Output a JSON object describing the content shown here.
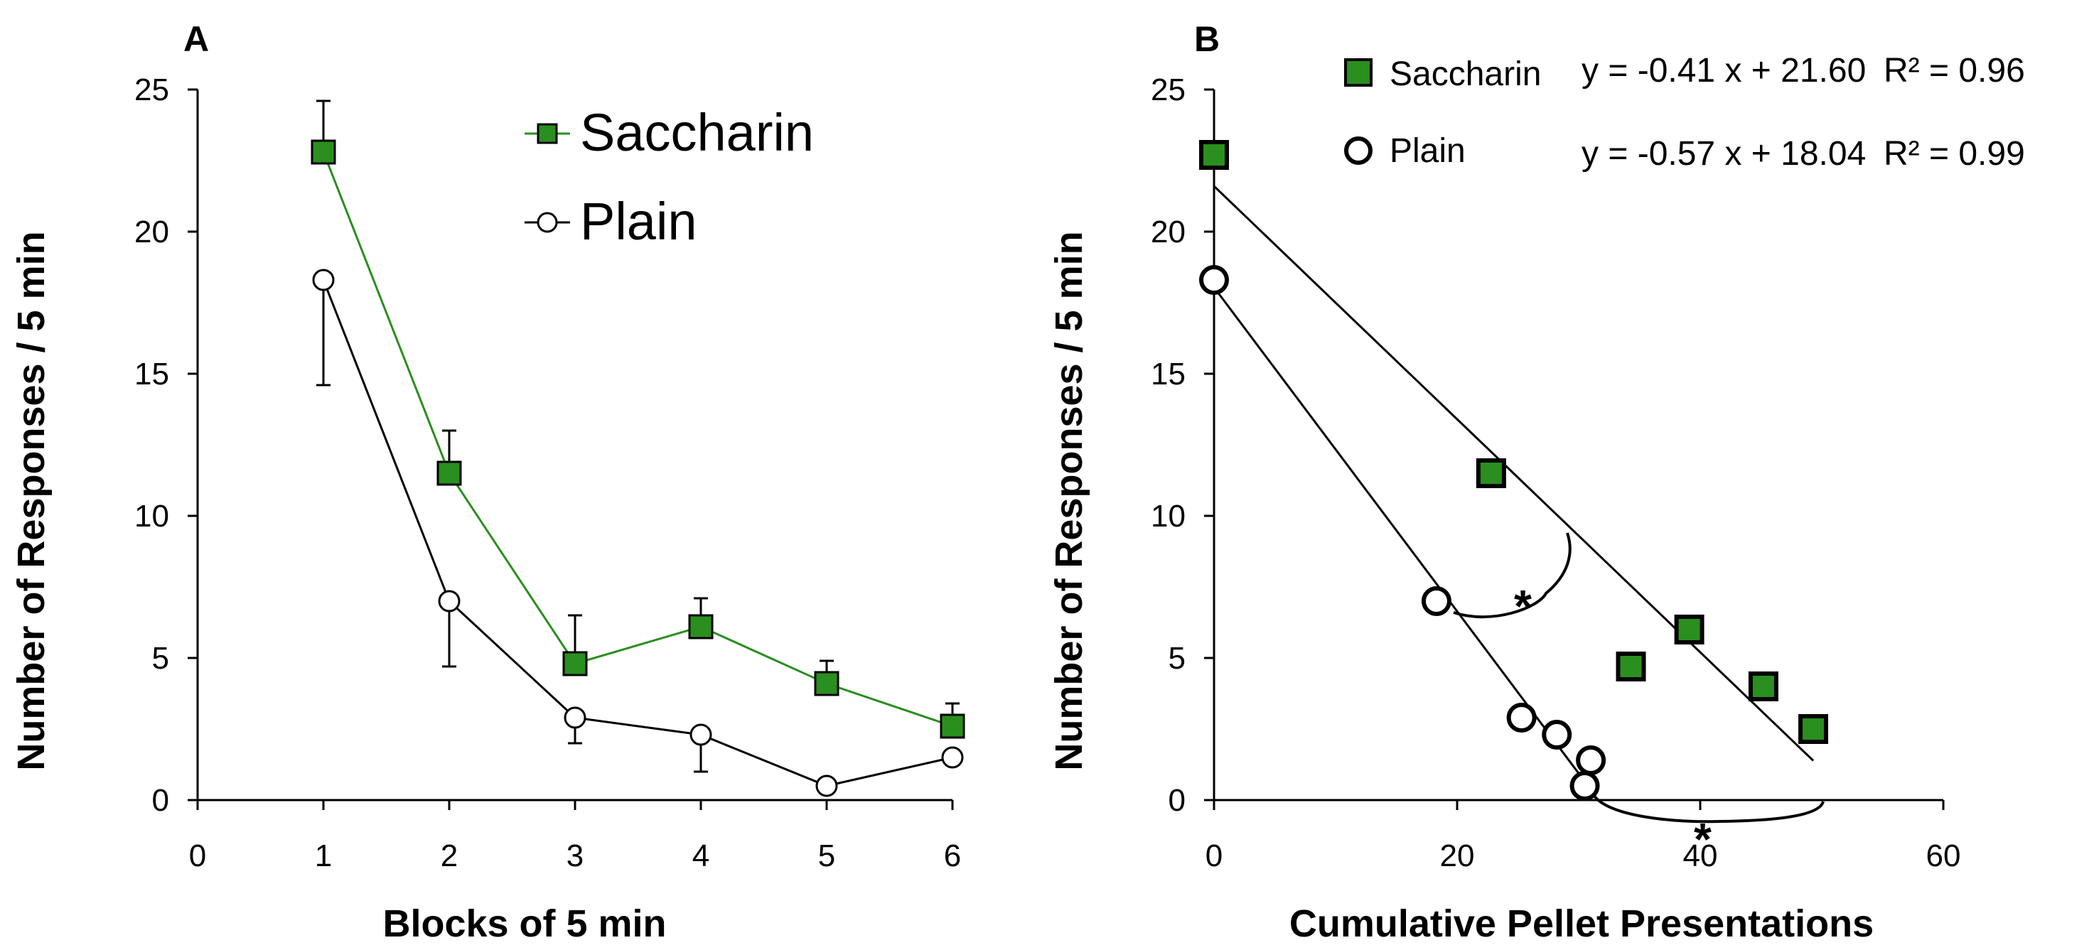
{
  "colors": {
    "saccharin": "#2a8f1e",
    "saccharin_line": "#2a8f1e",
    "plain_fill": "#ffffff",
    "axis": "#000000"
  },
  "chart_data": [
    {
      "panel": "A",
      "type": "line",
      "xlabel": "Blocks of 5 min",
      "ylabel": "Number of Responses / 5 min",
      "xlim": [
        0,
        6
      ],
      "ylim": [
        0,
        25
      ],
      "xticks": [
        0,
        1,
        2,
        3,
        4,
        5,
        6
      ],
      "yticks": [
        0,
        5,
        10,
        15,
        20,
        25
      ],
      "legend_position": "top-right",
      "series": [
        {
          "name": "Saccharin",
          "marker": "square",
          "x": [
            1,
            2,
            3,
            4,
            5,
            6
          ],
          "values": [
            22.8,
            11.5,
            4.8,
            6.1,
            4.1,
            2.6
          ],
          "error": [
            1.8,
            1.5,
            1.7,
            1.0,
            0.8,
            0.8
          ]
        },
        {
          "name": "Plain",
          "marker": "circle",
          "x": [
            1,
            2,
            3,
            4,
            5,
            6
          ],
          "values": [
            18.3,
            7.0,
            2.9,
            2.3,
            0.5,
            1.5
          ],
          "error": [
            3.7,
            2.3,
            0.9,
            1.3,
            0.0,
            0.0
          ]
        }
      ]
    },
    {
      "panel": "B",
      "type": "scatter",
      "xlabel": "Cumulative Pellet Presentations",
      "ylabel": "Number of Responses / 5 min",
      "xlim": [
        0,
        60
      ],
      "ylim": [
        0,
        25
      ],
      "xticks": [
        0,
        20,
        40,
        60
      ],
      "yticks": [
        0,
        5,
        10,
        15,
        20,
        25
      ],
      "legend_position": "top",
      "significance_marker": "*",
      "series": [
        {
          "name": "Saccharin",
          "marker": "square",
          "x": [
            0,
            22.8,
            34.3,
            39.1,
            45.2,
            49.3
          ],
          "values": [
            22.7,
            11.5,
            4.7,
            6.0,
            4.0,
            2.5
          ],
          "equation": "y = -0.41 x + 21.60",
          "r2": "R² = 0.96",
          "fit": {
            "slope": -0.41,
            "intercept": 21.6,
            "x_range": [
              0,
              49.3
            ]
          }
        },
        {
          "name": "Plain",
          "marker": "circle",
          "x": [
            0,
            18.3,
            25.3,
            28.2,
            30.5,
            31.0
          ],
          "values": [
            18.3,
            7.0,
            2.9,
            2.3,
            0.5,
            1.4
          ],
          "equation": "y = -0.57 x + 18.04",
          "r2": "R² = 0.99",
          "fit": {
            "slope": -0.57,
            "intercept": 18.04,
            "x_range": [
              0,
              31.0
            ]
          }
        }
      ]
    }
  ]
}
